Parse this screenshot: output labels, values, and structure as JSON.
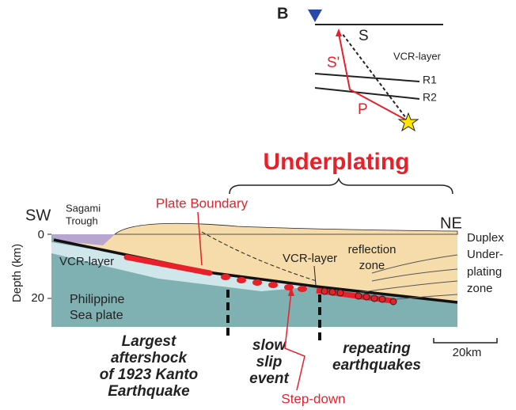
{
  "inset": {
    "panel": "B",
    "s": "S",
    "s_prime": "S'",
    "layer": "VCR-layer",
    "r1": "R1",
    "r2": "R2",
    "p": "P"
  },
  "title": "Underplating",
  "section": {
    "sw": "SW",
    "trough": [
      "Sagami",
      "Trough"
    ],
    "ne": "NE",
    "plate_boundary": "Plate Boundary",
    "duplex": [
      "Duplex",
      "Under-",
      "plating",
      "zone"
    ],
    "depth_label": "Depth (km)",
    "depth_ticks": [
      "0",
      "20"
    ],
    "vcr_left": "VCR-layer",
    "vcr_mid": "VCR-layer",
    "reflection": [
      "reflection",
      "zone"
    ],
    "plate": [
      "Philippine",
      "Sea plate"
    ]
  },
  "labels": {
    "aftershock": [
      "Largest",
      "aftershock",
      "of 1923 Kanto",
      "Earthquake"
    ],
    "slow_slip": [
      "slow",
      "slip",
      "event"
    ],
    "repeating": [
      "repeating",
      "earthquakes"
    ],
    "step_down": "Step-down",
    "scale": "20km"
  }
}
